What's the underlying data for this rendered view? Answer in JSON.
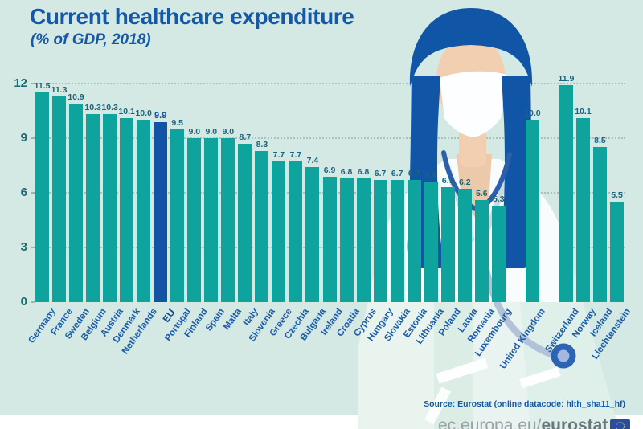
{
  "header": {
    "title": "Current healthcare expenditure",
    "subtitle": "(% of GDP, 2018)"
  },
  "chart_data": {
    "type": "bar",
    "title": "Current healthcare expenditure",
    "subtitle": "(% of GDP, 2018)",
    "ylabel": "% of GDP",
    "ylim": [
      0,
      12
    ],
    "yticks": [
      0,
      3,
      6,
      9,
      12
    ],
    "grid": "horizontal-dotted",
    "highlight_color": "#1353a5",
    "bar_color": "#0fa39e",
    "entries": [
      {
        "label": "Germany",
        "value": 11.5
      },
      {
        "label": "France",
        "value": 11.3
      },
      {
        "label": "Sweden",
        "value": 10.9
      },
      {
        "label": "Belgium",
        "value": 10.3
      },
      {
        "label": "Austria",
        "value": 10.3
      },
      {
        "label": "Denmark",
        "value": 10.1
      },
      {
        "label": "Netherlands",
        "value": 10.0
      },
      {
        "label": "EU",
        "value": 9.9,
        "highlight": true
      },
      {
        "label": "Portugal",
        "value": 9.5
      },
      {
        "label": "Finland",
        "value": 9.0
      },
      {
        "label": "Spain",
        "value": 9.0
      },
      {
        "label": "Malta",
        "value": 9.0
      },
      {
        "label": "Italy",
        "value": 8.7
      },
      {
        "label": "Slovenia",
        "value": 8.3
      },
      {
        "label": "Greece",
        "value": 7.7
      },
      {
        "label": "Czechia",
        "value": 7.7
      },
      {
        "label": "Bulgaria",
        "value": 7.4
      },
      {
        "label": "Ireland",
        "value": 6.9
      },
      {
        "label": "Croatia",
        "value": 6.8
      },
      {
        "label": "Cyprus",
        "value": 6.8
      },
      {
        "label": "Hungary",
        "value": 6.7
      },
      {
        "label": "Slovakia",
        "value": 6.7
      },
      {
        "label": "Estonia",
        "value": 6.7
      },
      {
        "label": "Lithuania",
        "value": 6.6
      },
      {
        "label": "Poland",
        "value": 6.3
      },
      {
        "label": "Latvia",
        "value": 6.2
      },
      {
        "label": "Romania",
        "value": 5.6
      },
      {
        "label": "Luxembourg",
        "value": 5.3
      },
      {
        "label": "United Kingdom",
        "value": 10.0,
        "gap_before": true
      },
      {
        "label": "Switzerland",
        "value": 11.9,
        "gap_before": true
      },
      {
        "label": "Norway",
        "value": 10.1
      },
      {
        "label": "Iceland",
        "value": 8.5
      },
      {
        "label": "Liechtenstein",
        "value": 5.5
      }
    ]
  },
  "illustration": "masked-nurse-with-stethoscope",
  "source_note": "Source: Eurostat (online datacode: hlth_sha11_hf)",
  "footer": {
    "url_prefix": "ec.europa.eu/",
    "url_bold": "eurostat",
    "logo": "eu-flag-logo"
  },
  "colors": {
    "background": "#d4e8e4",
    "bar_teal": "#0fa39e",
    "eu_bar_blue": "#1353a5",
    "accent_blue": "#1459a7",
    "hair_blue": "#1155a6",
    "footer_gray": "#99a1a7"
  }
}
